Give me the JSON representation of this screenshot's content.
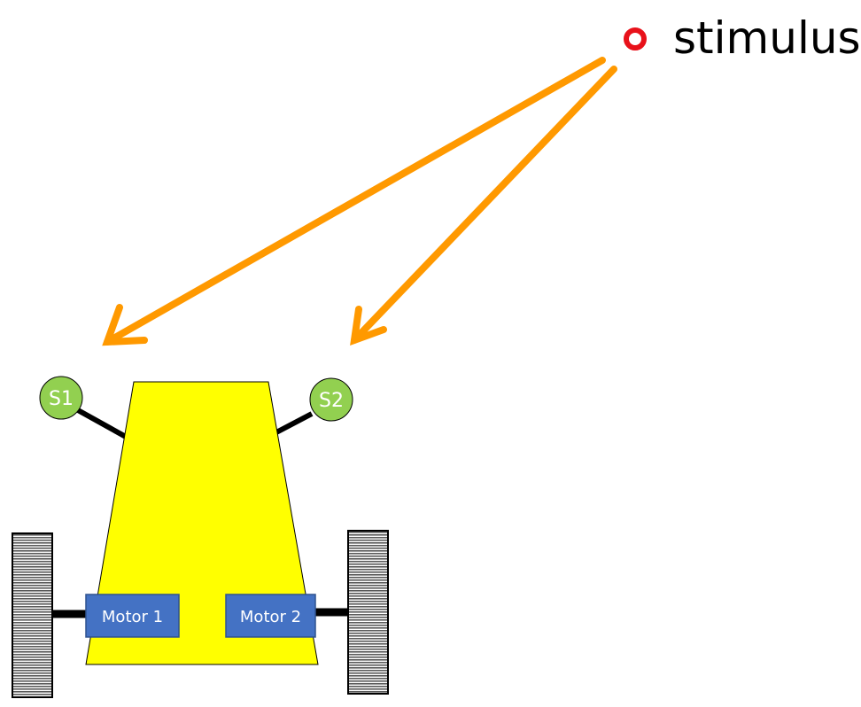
{
  "stimulus": {
    "label": "stimulus",
    "color": "#e8111a"
  },
  "sensors": [
    {
      "label": "S1",
      "color": "#92d050"
    },
    {
      "label": "S2",
      "color": "#92d050"
    }
  ],
  "motors": [
    {
      "label": "Motor 1",
      "color": "#4472c4"
    },
    {
      "label": "Motor 2",
      "color": "#4472c4"
    }
  ],
  "colors": {
    "arrow": "#ff9900",
    "chassis": "#ffff00",
    "wheel_stripe": "#5a5a5a",
    "axle": "#000000"
  }
}
